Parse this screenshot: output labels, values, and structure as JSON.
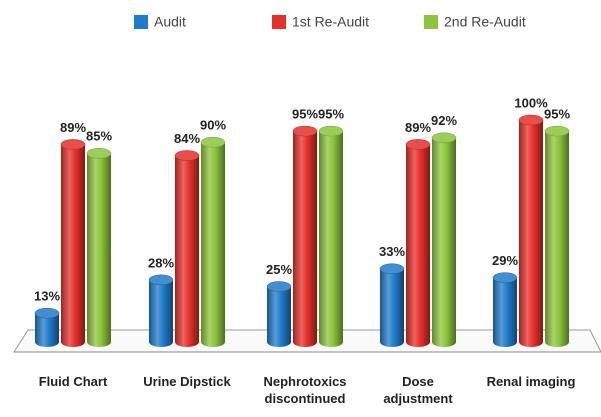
{
  "chart_data": {
    "type": "bar3d",
    "categories": [
      "Fluid Chart",
      "Urine Dipstick",
      "Nephrotoxics discontinued",
      "Dose adjustment",
      "Renal imaging"
    ],
    "series": [
      {
        "name": "Audit",
        "color": "#1f7bc9",
        "values": [
          13,
          28,
          25,
          33,
          29
        ],
        "value_labels": [
          "13%",
          "28%",
          "25%",
          "33%",
          "29%"
        ]
      },
      {
        "name": "1st Re-Audit",
        "color": "#e5302a",
        "values": [
          89,
          84,
          95,
          89,
          100
        ],
        "value_labels": [
          "89%",
          "84%",
          "95%",
          "89%",
          "100%"
        ]
      },
      {
        "name": "2nd Re-Audit",
        "color": "#8cc43c",
        "values": [
          85,
          90,
          95,
          92,
          95
        ],
        "value_labels": [
          "85%",
          "90%",
          "95%",
          "92%",
          "95%"
        ]
      }
    ],
    "legend": "top"
  }
}
